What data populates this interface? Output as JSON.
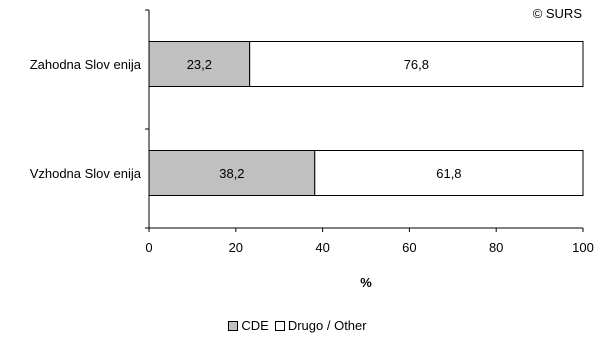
{
  "chart_data": {
    "type": "bar",
    "orientation": "horizontal",
    "stacked": true,
    "categories": [
      "Zahodna Slovenija",
      "Vzhodna Slovenija"
    ],
    "series": [
      {
        "name": "CDE",
        "values": [
          23.2,
          38.2
        ],
        "color": "#c0c0c0"
      },
      {
        "name": "Drugo / Other",
        "values": [
          76.8,
          61.8
        ],
        "color": "#ffffff"
      }
    ],
    "data_labels": {
      "CDE": [
        "23,2",
        "38,2"
      ],
      "Drugo / Other": [
        "76,8",
        "61,8"
      ]
    },
    "category_labels": [
      "Zahodna Slov enija",
      "Vzhodna Slov enija"
    ],
    "xlabel": "%",
    "xlim": [
      0,
      100
    ],
    "x_ticks": [
      "0",
      "20",
      "40",
      "60",
      "80",
      "100"
    ],
    "grid": false,
    "legend_position": "bottom",
    "annotation": "© SURS"
  }
}
